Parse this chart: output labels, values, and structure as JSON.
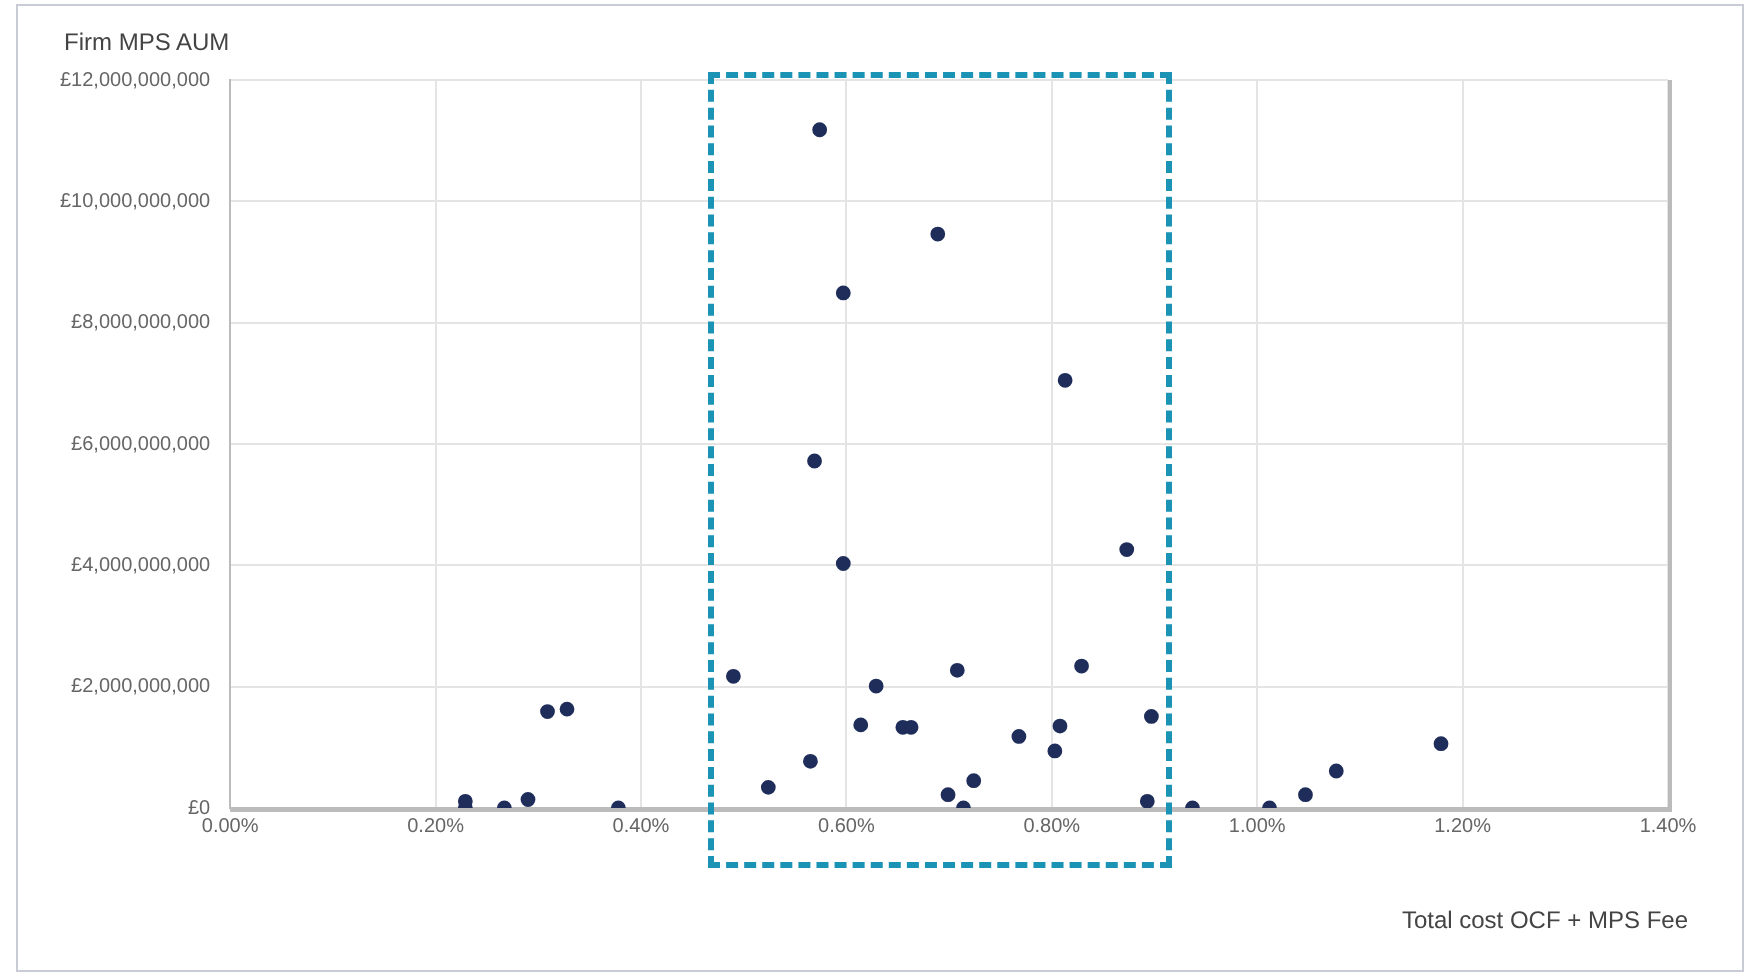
{
  "chart_data": {
    "type": "scatter",
    "xlabel": "Total cost OCF + MPS Fee",
    "ylabel": "Firm MPS AUM",
    "series": [
      {
        "color": "#1f2d5a",
        "x": [
          0.229,
          0.229,
          0.267,
          0.29,
          0.309,
          0.328,
          0.378,
          0.49,
          0.524,
          0.565,
          0.574,
          0.569,
          0.597,
          0.597,
          0.689,
          0.813,
          0.873,
          0.829,
          0.708,
          0.629,
          0.614,
          0.655,
          0.663,
          0.768,
          0.808,
          0.803,
          0.897,
          0.699,
          0.714,
          0.724,
          0.893,
          0.937,
          1.012,
          1.047,
          1.077,
          1.179
        ],
        "values": [
          110000000,
          0,
          0,
          140000000,
          1590000000,
          1630000000,
          0,
          2170000000,
          340000000,
          770000000,
          11180000000,
          5720000000,
          8490000000,
          4030000000,
          9460000000,
          7050000000,
          4260000000,
          2340000000,
          2270000000,
          2010000000,
          1370000000,
          1330000000,
          1330000000,
          1180000000,
          1350000000,
          940000000,
          1510000000,
          220000000,
          0,
          450000000,
          110000000,
          0,
          0,
          220000000,
          610000000,
          1060000000
        ]
      }
    ],
    "xlim": [
      0,
      1.4
    ],
    "xticks": [
      {
        "value": 0,
        "label": "0.00%"
      },
      {
        "value": 0.2,
        "label": "0.20%"
      },
      {
        "value": 0.4,
        "label": "0.40%"
      },
      {
        "value": 0.6,
        "label": "0.60%"
      },
      {
        "value": 0.8,
        "label": "0.80%"
      },
      {
        "value": 1.0,
        "label": "1.00%"
      },
      {
        "value": 1.2,
        "label": "1.20%"
      },
      {
        "value": 1.4,
        "label": "1.40%"
      }
    ],
    "ylim": [
      0,
      12000000000
    ],
    "yticks": [
      {
        "value": 0,
        "label": "£0"
      },
      {
        "value": 2000000000,
        "label": "£2,000,000,000"
      },
      {
        "value": 4000000000,
        "label": "£4,000,000,000"
      },
      {
        "value": 6000000000,
        "label": "£6,000,000,000"
      },
      {
        "value": 8000000000,
        "label": "£8,000,000,000"
      },
      {
        "value": 10000000000,
        "label": "£10,000,000,000"
      },
      {
        "value": 12000000000,
        "label": "£12,000,000,000"
      }
    ],
    "grid": true,
    "marker": "circle",
    "legend": false
  }
}
